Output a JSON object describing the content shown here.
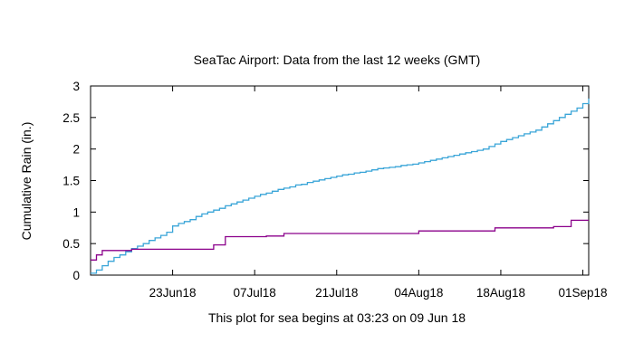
{
  "chart_data": {
    "type": "line",
    "title": "SeaTac Airport:   Data from the last 12 weeks (GMT)",
    "ylabel": "Cumulative Rain (in.)",
    "xlabel": "This plot for sea begins at 03:23 on 09 Jun 18",
    "ylim": [
      0,
      3
    ],
    "xlim": [
      "2018-06-09",
      "2018-09-02"
    ],
    "grid": false,
    "y_ticks": [
      "0",
      "0.5",
      "1",
      "1.5",
      "2",
      "2.5",
      "3"
    ],
    "x_ticks": [
      {
        "date": "2018-06-23",
        "label": "23Jun18"
      },
      {
        "date": "2018-07-07",
        "label": "07Jul18"
      },
      {
        "date": "2018-07-21",
        "label": "21Jul18"
      },
      {
        "date": "2018-08-04",
        "label": "04Aug18"
      },
      {
        "date": "2018-08-18",
        "label": "18Aug18"
      },
      {
        "date": "2018-09-01",
        "label": "01Sep18"
      }
    ],
    "colors": {
      "series_blue": "#3aa5d8",
      "series_purple": "#8b008b",
      "axes": "#000000"
    },
    "series": [
      {
        "color": "#3aa5d8",
        "step": true,
        "x": [
          "2018-06-09",
          "2018-06-10",
          "2018-06-11",
          "2018-06-12",
          "2018-06-13",
          "2018-06-14",
          "2018-06-15",
          "2018-06-16",
          "2018-06-17",
          "2018-06-18",
          "2018-06-19",
          "2018-06-20",
          "2018-06-21",
          "2018-06-22",
          "2018-06-23",
          "2018-06-24",
          "2018-06-25",
          "2018-06-26",
          "2018-06-27",
          "2018-06-28",
          "2018-06-29",
          "2018-06-30",
          "2018-07-01",
          "2018-07-02",
          "2018-07-03",
          "2018-07-04",
          "2018-07-05",
          "2018-07-06",
          "2018-07-07",
          "2018-07-08",
          "2018-07-09",
          "2018-07-10",
          "2018-07-11",
          "2018-07-12",
          "2018-07-13",
          "2018-07-14",
          "2018-07-15",
          "2018-07-16",
          "2018-07-17",
          "2018-07-18",
          "2018-07-19",
          "2018-07-20",
          "2018-07-21",
          "2018-07-22",
          "2018-07-23",
          "2018-07-24",
          "2018-07-25",
          "2018-07-26",
          "2018-07-27",
          "2018-07-28",
          "2018-07-29",
          "2018-07-30",
          "2018-07-31",
          "2018-08-01",
          "2018-08-02",
          "2018-08-03",
          "2018-08-04",
          "2018-08-05",
          "2018-08-06",
          "2018-08-07",
          "2018-08-08",
          "2018-08-09",
          "2018-08-10",
          "2018-08-11",
          "2018-08-12",
          "2018-08-13",
          "2018-08-14",
          "2018-08-15",
          "2018-08-16",
          "2018-08-17",
          "2018-08-18",
          "2018-08-19",
          "2018-08-20",
          "2018-08-21",
          "2018-08-22",
          "2018-08-23",
          "2018-08-24",
          "2018-08-25",
          "2018-08-26",
          "2018-08-27",
          "2018-08-28",
          "2018-08-29",
          "2018-08-30",
          "2018-08-31",
          "2018-09-01",
          "2018-09-02"
        ],
        "y": [
          0.03,
          0.08,
          0.15,
          0.22,
          0.28,
          0.32,
          0.37,
          0.42,
          0.46,
          0.5,
          0.55,
          0.59,
          0.63,
          0.68,
          0.78,
          0.82,
          0.85,
          0.88,
          0.93,
          0.97,
          1.0,
          1.03,
          1.06,
          1.1,
          1.13,
          1.16,
          1.19,
          1.22,
          1.25,
          1.28,
          1.3,
          1.33,
          1.36,
          1.38,
          1.4,
          1.43,
          1.44,
          1.47,
          1.49,
          1.51,
          1.53,
          1.55,
          1.57,
          1.59,
          1.6,
          1.62,
          1.63,
          1.65,
          1.67,
          1.69,
          1.7,
          1.71,
          1.72,
          1.74,
          1.75,
          1.76,
          1.78,
          1.8,
          1.82,
          1.84,
          1.86,
          1.88,
          1.9,
          1.92,
          1.94,
          1.96,
          1.98,
          2.0,
          2.04,
          2.08,
          2.12,
          2.15,
          2.18,
          2.21,
          2.24,
          2.27,
          2.3,
          2.35,
          2.4,
          2.45,
          2.5,
          2.55,
          2.6,
          2.65,
          2.72,
          2.8
        ]
      },
      {
        "color": "#8b008b",
        "step": true,
        "x": [
          "2018-06-09",
          "2018-06-10",
          "2018-06-11",
          "2018-06-13",
          "2018-06-16",
          "2018-06-30",
          "2018-07-02",
          "2018-07-09",
          "2018-07-12",
          "2018-08-04",
          "2018-08-17",
          "2018-08-27",
          "2018-08-30"
        ],
        "y": [
          0.24,
          0.32,
          0.39,
          0.39,
          0.41,
          0.48,
          0.61,
          0.62,
          0.66,
          0.7,
          0.75,
          0.77,
          0.87
        ]
      }
    ]
  }
}
